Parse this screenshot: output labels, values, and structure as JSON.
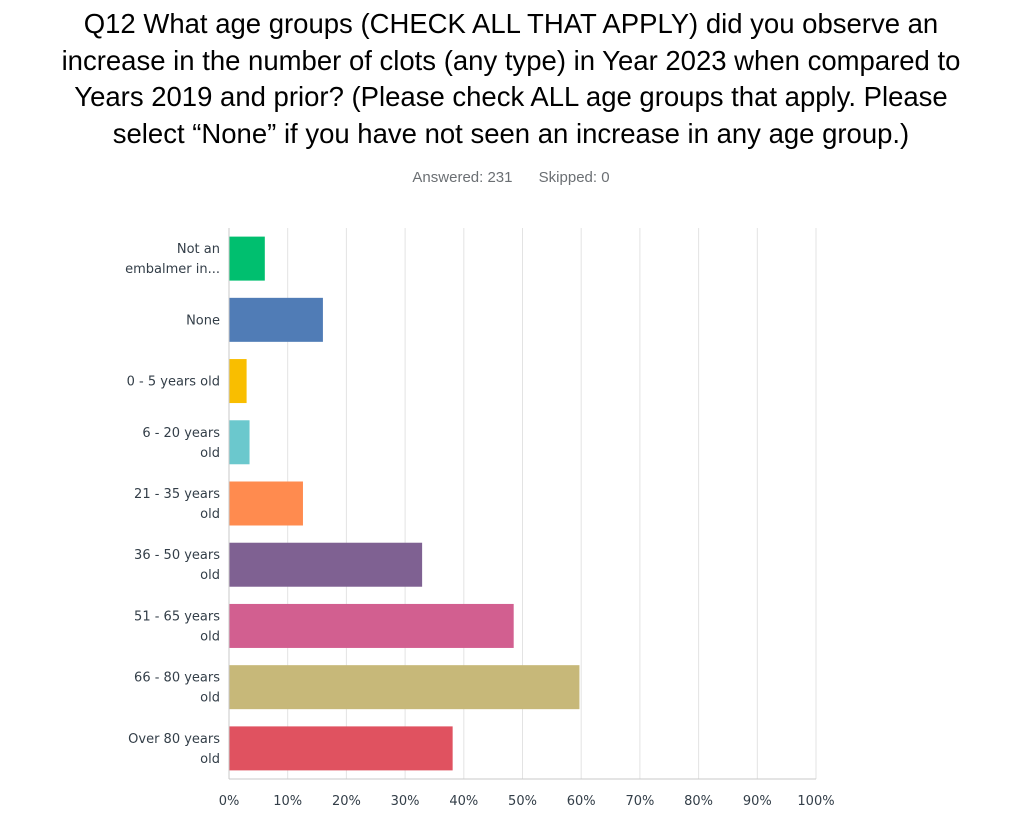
{
  "header": {
    "title_lines": [
      "Q12 What age groups (CHECK ALL THAT APPLY) did you observe an",
      "increase in the number of clots (any type) in Year 2023 when compared to",
      "Years 2019 and prior? (Please check ALL age groups that apply. Please",
      "select “None” if you have not seen an increase in any age group.)"
    ],
    "answered": "Answered: 231",
    "skipped": "Skipped: 0"
  },
  "chart_data": {
    "type": "bar",
    "orientation": "horizontal",
    "categories": [
      [
        "Not an",
        "embalmer in..."
      ],
      [
        "None"
      ],
      [
        "0 - 5 years old"
      ],
      [
        "6 - 20 years",
        "old"
      ],
      [
        "21 - 35 years",
        "old"
      ],
      [
        "36 - 50 years",
        "old"
      ],
      [
        "51 - 65 years",
        "old"
      ],
      [
        "66 - 80 years",
        "old"
      ],
      [
        "Over 80 years",
        "old"
      ]
    ],
    "values": [
      6.1,
      16.0,
      3.0,
      3.5,
      12.6,
      32.9,
      48.5,
      59.7,
      38.1
    ],
    "colors": [
      "#00bf6f",
      "#507cb6",
      "#f9be00",
      "#6bc8cd",
      "#ff8b4f",
      "#7f6192",
      "#d25f90",
      "#c7b879",
      "#e05260"
    ],
    "xlim": [
      0,
      100
    ],
    "xticks": [
      "0%",
      "10%",
      "20%",
      "30%",
      "40%",
      "50%",
      "60%",
      "70%",
      "80%",
      "90%",
      "100%"
    ],
    "grid": true,
    "grid_color": "#e3e3e3",
    "axis_color": "#c9c9c9"
  }
}
